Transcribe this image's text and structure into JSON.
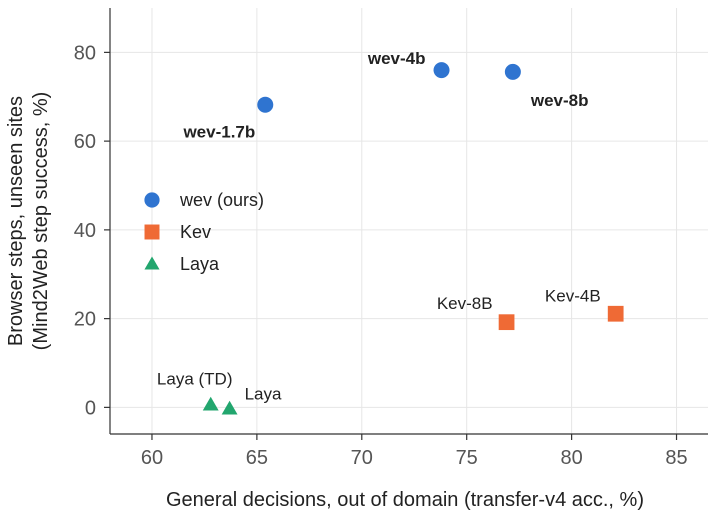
{
  "chart_data": {
    "type": "scatter",
    "xlabel": "General decisions, out of domain (transfer-v4 acc., %)",
    "ylabel_lines": [
      "Browser steps, unseen sites",
      "(Mind2Web step success, %)"
    ],
    "xlim": [
      58,
      86.5
    ],
    "ylim": [
      -6,
      90
    ],
    "xticks": [
      60,
      65,
      70,
      75,
      80,
      85
    ],
    "yticks": [
      0,
      20,
      40,
      60,
      80
    ],
    "grid": true,
    "legend_position": "left-middle",
    "series": [
      {
        "name": "wev (ours)",
        "marker": "circle",
        "color": "#2f74d0",
        "bold_labels": true,
        "points": [
          {
            "label": "wev-1.7b",
            "x": 65.4,
            "y": 68.2
          },
          {
            "label": "wev-4b",
            "x": 73.8,
            "y": 76.0
          },
          {
            "label": "wev-8b",
            "x": 77.2,
            "y": 75.6
          }
        ]
      },
      {
        "name": "Kev",
        "marker": "square",
        "color": "#ef6a35",
        "bold_labels": false,
        "points": [
          {
            "label": "Kev-8B",
            "x": 76.9,
            "y": 19.2
          },
          {
            "label": "Kev-4B",
            "x": 82.1,
            "y": 21.1
          }
        ]
      },
      {
        "name": "Laya",
        "marker": "triangle",
        "color": "#22a66e",
        "bold_labels": false,
        "points": [
          {
            "label": "Laya (TD)",
            "x": 62.8,
            "y": 0.6
          },
          {
            "label": "Laya",
            "x": 63.7,
            "y": -0.3
          }
        ]
      }
    ]
  }
}
